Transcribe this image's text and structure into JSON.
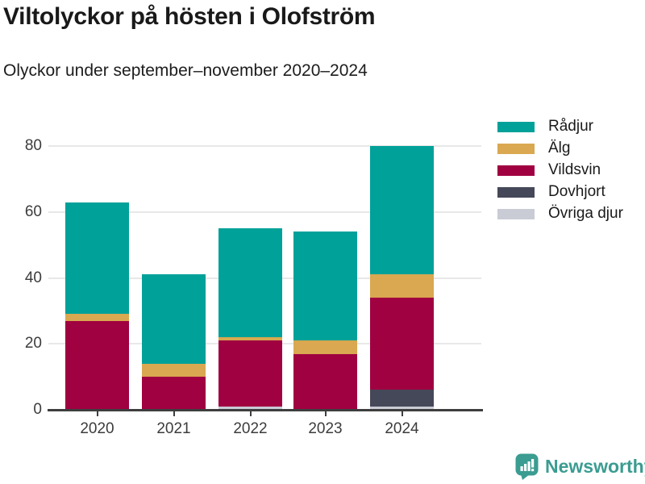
{
  "title": "Viltolyckor på hösten i Olofström",
  "subtitle": "Olyckor under september–november 2020–2024",
  "legend": {
    "items": [
      {
        "label": "Rådjur",
        "color": "#00a199"
      },
      {
        "label": "Älg",
        "color": "#d9a850"
      },
      {
        "label": "Vildsvin",
        "color": "#a00140"
      },
      {
        "label": "Dovhjort",
        "color": "#454858"
      },
      {
        "label": "Övriga djur",
        "color": "#c9cbd5"
      }
    ]
  },
  "chart_data": {
    "type": "bar",
    "stacked": true,
    "title": "Viltolyckor på hösten i Olofström",
    "subtitle": "Olyckor under september–november 2020–2024",
    "categories": [
      "2020",
      "2021",
      "2022",
      "2023",
      "2024"
    ],
    "series": [
      {
        "name": "Rådjur",
        "color": "#00a199",
        "values": [
          34,
          27,
          33,
          33,
          39
        ]
      },
      {
        "name": "Älg",
        "color": "#d9a850",
        "values": [
          2,
          4,
          1,
          4,
          7
        ]
      },
      {
        "name": "Vildsvin",
        "color": "#a00140",
        "values": [
          27,
          10,
          20,
          17,
          28
        ]
      },
      {
        "name": "Dovhjort",
        "color": "#454858",
        "values": [
          0,
          0,
          0,
          0,
          5
        ]
      },
      {
        "name": "Övriga djur",
        "color": "#c9cbd5",
        "values": [
          0,
          0,
          1,
          0,
          1
        ]
      }
    ],
    "stack_order_bottom_to_top": [
      "Övriga djur",
      "Dovhjort",
      "Vildsvin",
      "Älg",
      "Rådjur"
    ],
    "totals": [
      63,
      41,
      55,
      54,
      80
    ],
    "xlabel": "",
    "ylabel": "",
    "ylim": [
      0,
      80
    ],
    "yticks": [
      0,
      20,
      40,
      60,
      80
    ],
    "grid": "horizontal",
    "legend_position": "right"
  },
  "footer": {
    "brand": "Newsworthy",
    "brand_color": "#3b9c91",
    "logo_icon": "bar-chart-speech-bubble-icon"
  }
}
